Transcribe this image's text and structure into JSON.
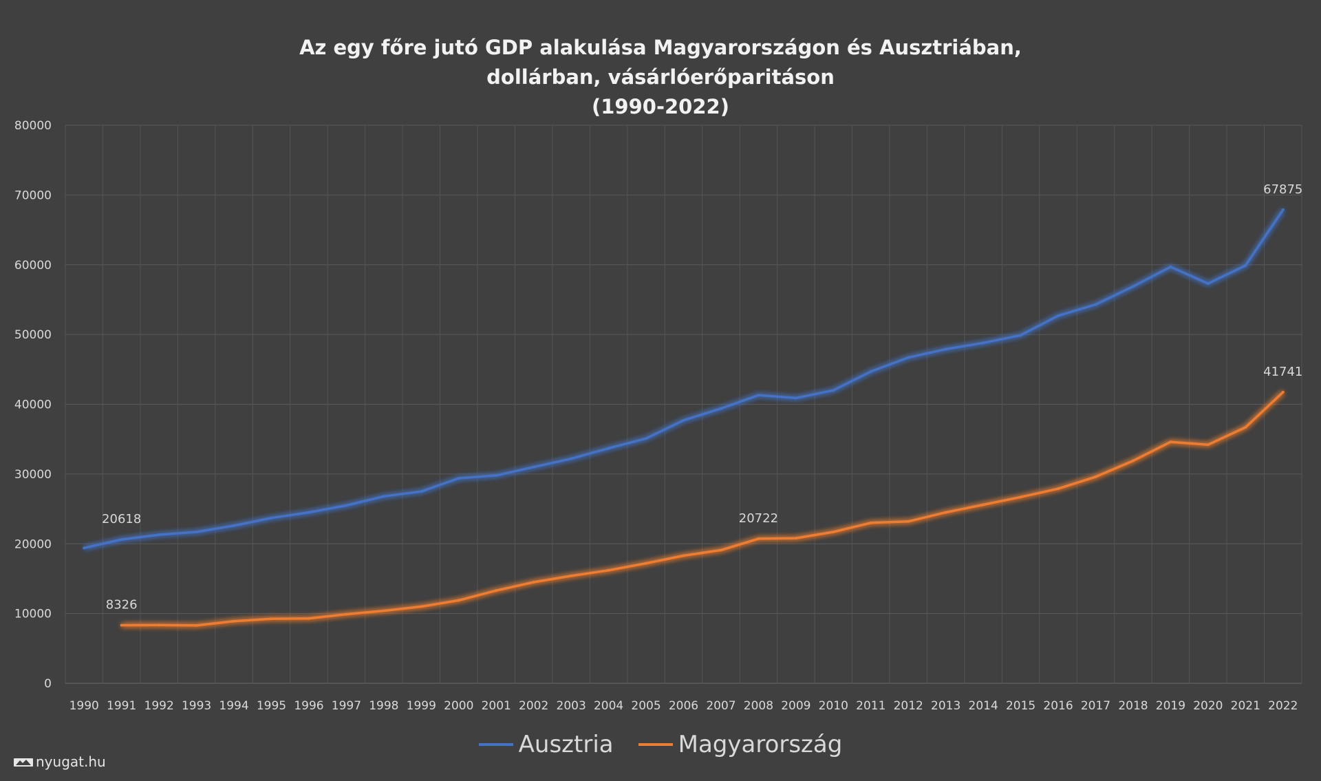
{
  "chart_data": {
    "type": "line",
    "title_lines": [
      "Az egy főre jutó GDP alakulása Magyarországon és Ausztriában,",
      "dollárban, vásárlóerőparitáson",
      "(1990-2022)"
    ],
    "xlabel": "",
    "ylabel": "",
    "ylim": [
      0,
      80000
    ],
    "yticks": [
      "0",
      "10000",
      "20000",
      "30000",
      "40000",
      "50000",
      "60000",
      "70000",
      "80000"
    ],
    "ytick_values": [
      0,
      10000,
      20000,
      30000,
      40000,
      50000,
      60000,
      70000,
      80000
    ],
    "x": [
      "1990",
      "1991",
      "1992",
      "1993",
      "1994",
      "1995",
      "1996",
      "1997",
      "1998",
      "1999",
      "2000",
      "2001",
      "2002",
      "2003",
      "2004",
      "2005",
      "2006",
      "2007",
      "2008",
      "2009",
      "2010",
      "2011",
      "2012",
      "2013",
      "2014",
      "2015",
      "2016",
      "2017",
      "2018",
      "2019",
      "2020",
      "2021",
      "2022"
    ],
    "grid": true,
    "legend_placement": "bottom",
    "series": [
      {
        "name": "Ausztria",
        "color": "#4472c4",
        "values": [
          19400,
          20618,
          21300,
          21700,
          22600,
          23700,
          24500,
          25500,
          26800,
          27500,
          29400,
          29800,
          31000,
          32200,
          33700,
          35100,
          37700,
          39400,
          41300,
          40900,
          42000,
          44700,
          46700,
          47900,
          48800,
          49900,
          52700,
          54300,
          56900,
          59700,
          57300,
          59900,
          67875
        ],
        "labels": [
          {
            "index": 1,
            "text": "20618"
          },
          {
            "index": 32,
            "text": "67875"
          }
        ]
      },
      {
        "name": "Magyarország",
        "color": "#ed7d31",
        "values": [
          null,
          8326,
          8350,
          8300,
          8900,
          9250,
          9300,
          9900,
          10400,
          11000,
          11900,
          13300,
          14500,
          15400,
          16200,
          17200,
          18300,
          19100,
          20722,
          20800,
          21700,
          23000,
          23200,
          24500,
          25600,
          26700,
          27900,
          29600,
          31900,
          34600,
          34200,
          36700,
          41741
        ],
        "labels": [
          {
            "index": 1,
            "text": "8326"
          },
          {
            "index": 18,
            "text": "20722"
          },
          {
            "index": 32,
            "text": "41741"
          }
        ]
      }
    ]
  },
  "watermark": {
    "text": "nyugat.hu",
    "icon": "nyugat-logo-icon"
  }
}
